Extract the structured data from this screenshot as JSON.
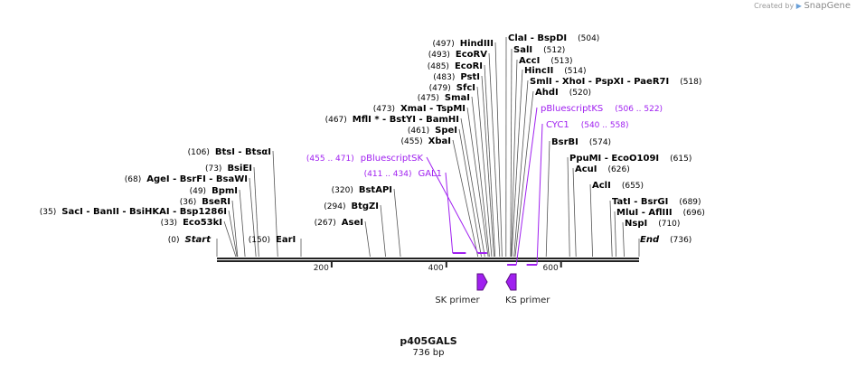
{
  "credit": {
    "prefix": "Created by",
    "brand": "SnapGene"
  },
  "plasmid": {
    "name": "p405GALS",
    "length_label": "736 bp",
    "length": 736
  },
  "colors": {
    "feature": "#a020f0",
    "site": "#000000",
    "line": "#555555"
  },
  "sites": [
    {
      "pos": "(0)",
      "name": "Start",
      "italic": true,
      "at": 0
    },
    {
      "pos": "(33)",
      "name": "Eco53kI",
      "at": 33
    },
    {
      "pos": "(35)",
      "name": "SacI  - BanII  - BsiHKAI  - Bsp1286I",
      "at": 35
    },
    {
      "pos": "(36)",
      "name": "BseRI",
      "at": 36
    },
    {
      "pos": "(49)",
      "name": "BpmI",
      "at": 49
    },
    {
      "pos": "(68)",
      "name": "AgeI  - BsrFI  - BsaWI",
      "at": 68
    },
    {
      "pos": "(73)",
      "name": "BsiEI",
      "at": 73
    },
    {
      "pos": "(106)",
      "name": "BtsI  - BtsαI",
      "at": 106
    },
    {
      "pos": "(150)",
      "name": "EarI",
      "at": 150
    },
    {
      "pos": "(267)",
      "name": "AseI",
      "at": 267
    },
    {
      "pos": "(294)",
      "name": "BtgZI",
      "at": 294
    },
    {
      "pos": "(320)",
      "name": "BstAPI",
      "at": 320
    },
    {
      "pos": "(455)",
      "name": "XbaI",
      "at": 455
    },
    {
      "pos": "(461)",
      "name": "SpeI",
      "at": 461
    },
    {
      "pos": "(467)",
      "name": "MflI *  - BstYI  - BamHI",
      "at": 467
    },
    {
      "pos": "(473)",
      "name": "XmaI  - TspMI",
      "at": 473
    },
    {
      "pos": "(475)",
      "name": "SmaI",
      "at": 475
    },
    {
      "pos": "(479)",
      "name": "SfcI",
      "at": 479
    },
    {
      "pos": "(483)",
      "name": "PstI",
      "at": 483
    },
    {
      "pos": "(485)",
      "name": "EcoRI",
      "at": 485
    },
    {
      "pos": "(493)",
      "name": "EcoRV",
      "at": 493
    },
    {
      "pos": "(497)",
      "name": "HindIII",
      "at": 497
    },
    {
      "pos": "(504)",
      "name": "ClaI  - BspDI",
      "at": 504
    },
    {
      "pos": "(512)",
      "name": "SalI",
      "at": 512
    },
    {
      "pos": "(513)",
      "name": "AccI",
      "at": 513
    },
    {
      "pos": "(514)",
      "name": "HincII",
      "at": 514
    },
    {
      "pos": "(518)",
      "name": "SmlI  - XhoI  - PspXI  - PaeR7I",
      "at": 518
    },
    {
      "pos": "(520)",
      "name": "AhdI",
      "at": 520
    },
    {
      "pos": "(574)",
      "name": "BsrBI",
      "at": 574
    },
    {
      "pos": "(615)",
      "name": "PpuMI  - EcoO109I",
      "at": 615
    },
    {
      "pos": "(626)",
      "name": "AcuI",
      "at": 626
    },
    {
      "pos": "(655)",
      "name": "AclI",
      "at": 655
    },
    {
      "pos": "(689)",
      "name": "TatI  - BsrGI",
      "at": 689
    },
    {
      "pos": "(696)",
      "name": "MluI  - AflIII",
      "at": 696
    },
    {
      "pos": "(710)",
      "name": "NspI",
      "at": 710
    },
    {
      "pos": "(736)",
      "name": "End",
      "italic": true,
      "at": 736
    }
  ],
  "features": [
    {
      "name": "pBluescriptSK",
      "range": "(455 .. 471)",
      "start": 455,
      "end": 471
    },
    {
      "name": "GAL1",
      "range": "(411 .. 434)",
      "start": 411,
      "end": 434
    },
    {
      "name": "pBluescriptKS",
      "range": "(506 .. 522)",
      "start": 506,
      "end": 522
    },
    {
      "name": "CYC1",
      "range": "(540 .. 558)",
      "start": 540,
      "end": 558
    }
  ],
  "primers": [
    {
      "name": "SK primer",
      "direction": "forward"
    },
    {
      "name": "KS primer",
      "direction": "reverse"
    }
  ],
  "ruler": {
    "ticks": [
      200,
      400,
      600
    ]
  }
}
